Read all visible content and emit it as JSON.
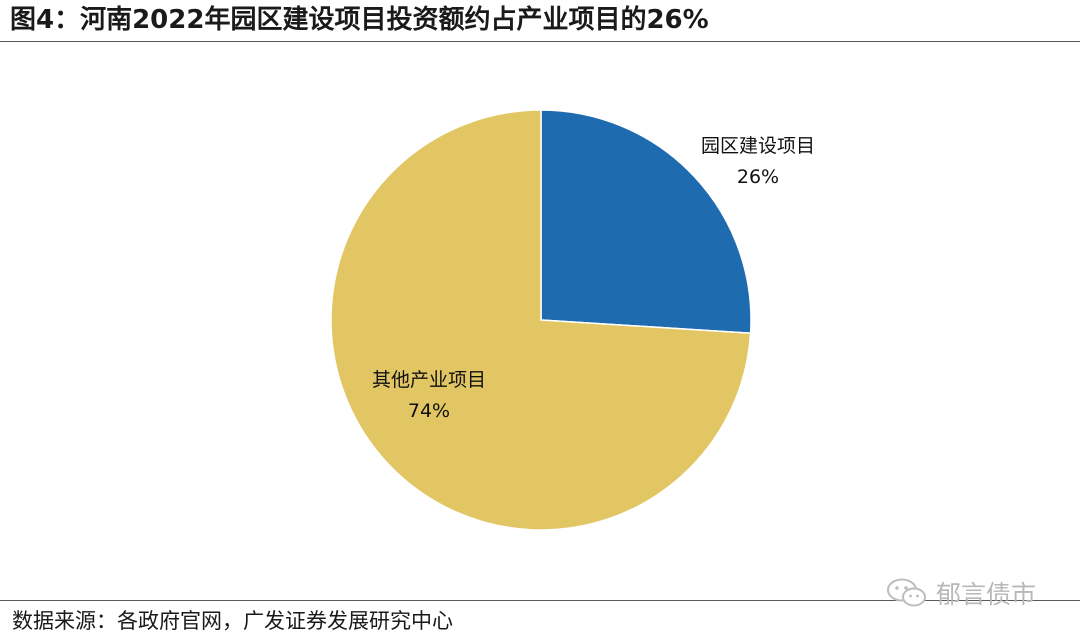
{
  "header": {
    "title": "图4：河南2022年园区建设项目投资额约占产业项目的26%"
  },
  "chart_data": {
    "type": "pie",
    "start_angle_deg": 0,
    "direction": "clockwise",
    "slices": [
      {
        "name": "园区建设项目",
        "value": 26,
        "label": "26%",
        "color": "#1f6bb0"
      },
      {
        "name": "其他产业项目",
        "value": 74,
        "label": "74%",
        "color": "#e2c664"
      }
    ],
    "legend": "none"
  },
  "footer": {
    "source": "数据来源：各政府官网，广发证券发展研究中心"
  },
  "watermark": {
    "text": "郁言债市",
    "icon": "wechat-icon"
  }
}
